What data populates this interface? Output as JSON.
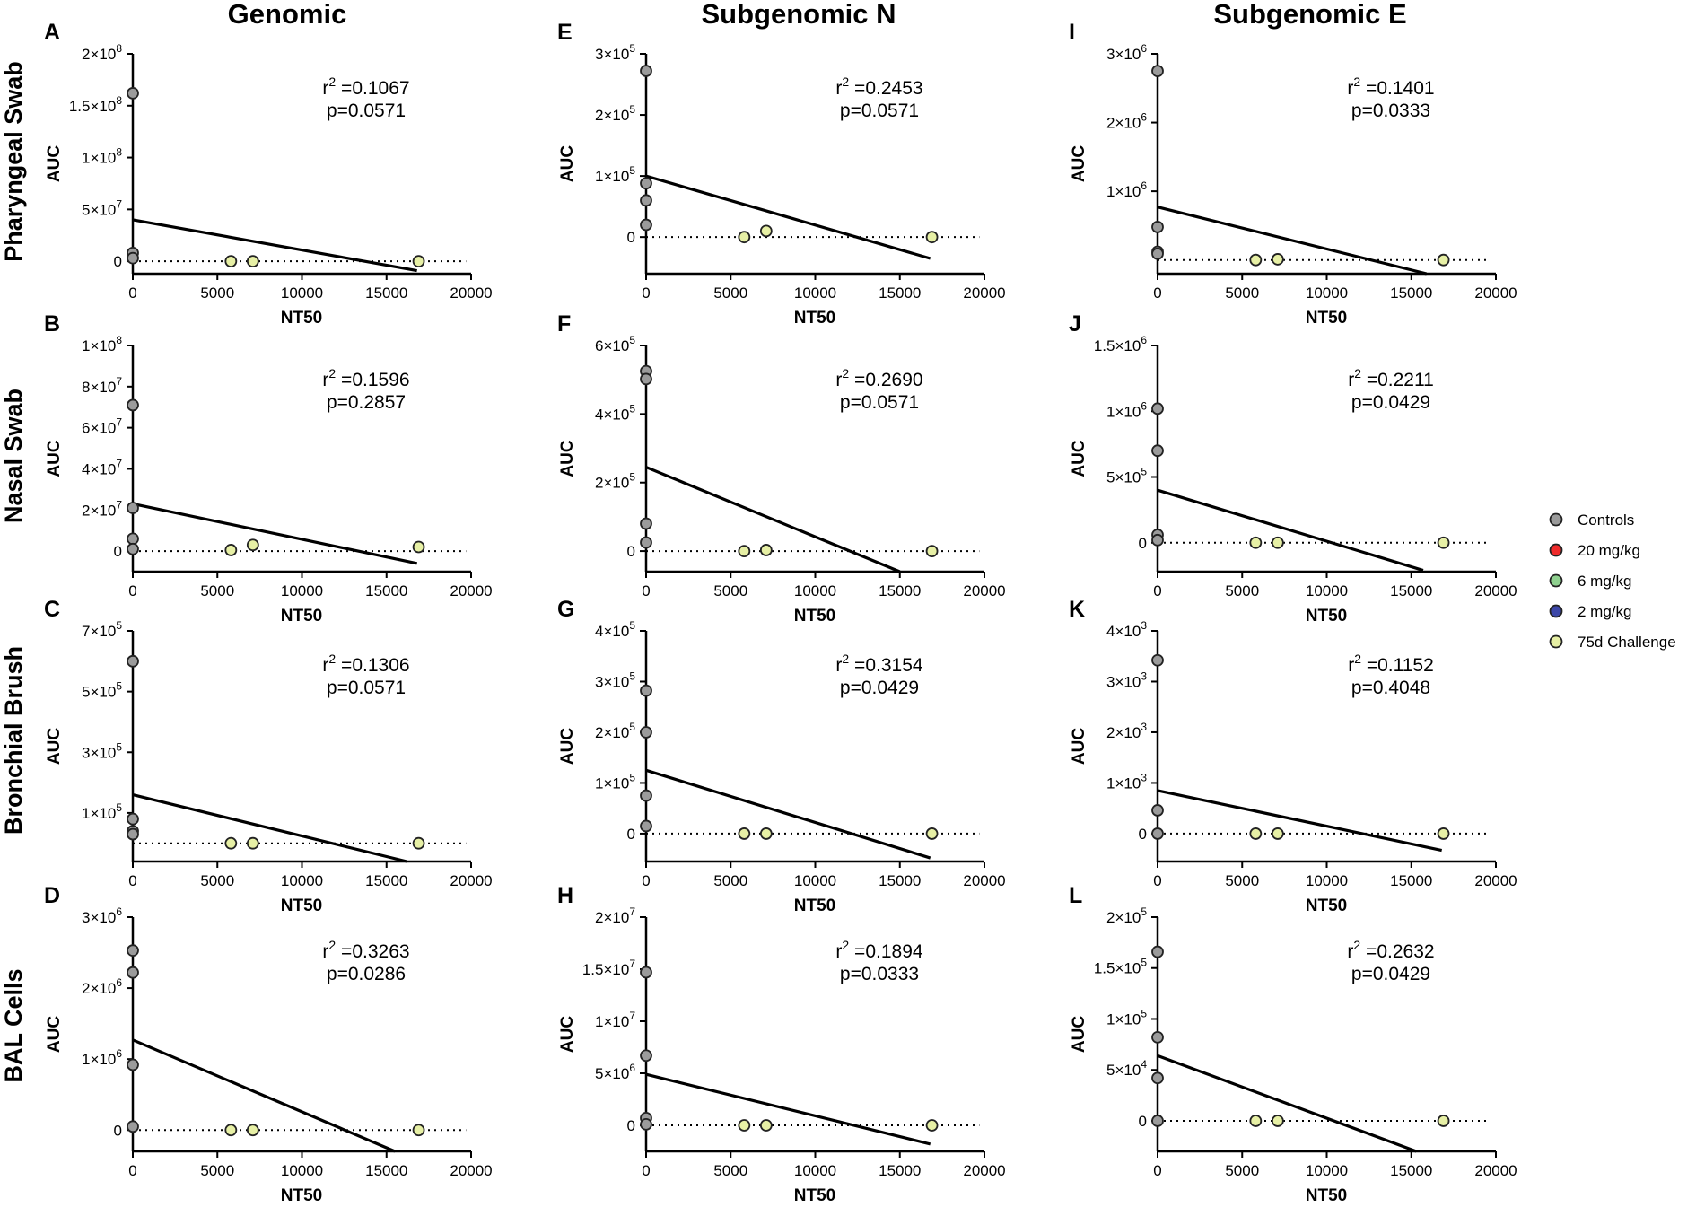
{
  "column_titles": [
    "Genomic",
    "Subgenomic N",
    "Subgenomic E"
  ],
  "row_titles": [
    "Pharyngeal Swab",
    "Nasal Swab",
    "Bronchial  Brush",
    "BAL Cells"
  ],
  "legend": [
    {
      "label": "Controls",
      "color": "#9b9b9b"
    },
    {
      "label": "20 mg/kg",
      "color": "#ef2b2b"
    },
    {
      "label": "6 mg/kg",
      "color": "#8fd18f"
    },
    {
      "label": "2 mg/kg",
      "color": "#3c47a8"
    },
    {
      "label": "75d Challenge",
      "color": "#e7f0a5"
    }
  ],
  "chart_data": [
    {
      "panel": "A",
      "type": "scatter",
      "title": "Genomic / Pharyngeal Swab",
      "xlabel": "NT50",
      "ylabel": "AUC",
      "xlim": [
        0,
        20000
      ],
      "ylim": [
        -12000000,
        200000000
      ],
      "y_ticks": [
        {
          "v": 0,
          "label": "0"
        },
        {
          "v": 50000000,
          "base": "5×10",
          "exp": "7"
        },
        {
          "v": 100000000,
          "base": "1×10",
          "exp": "8"
        },
        {
          "v": 150000000,
          "base": "1.5×10",
          "exp": "8"
        },
        {
          "v": 200000000,
          "base": "2×10",
          "exp": "8"
        }
      ],
      "x_ticks": [
        0,
        5000,
        10000,
        15000,
        20000
      ],
      "controls": [
        [
          0,
          162000000
        ],
        [
          0,
          8000000
        ],
        [
          0,
          3000000
        ]
      ],
      "challenge": [
        [
          5800,
          0
        ],
        [
          7100,
          0
        ],
        [
          16900,
          0
        ]
      ],
      "fit": [
        [
          0,
          40000000
        ],
        [
          16800,
          -9000000
        ]
      ],
      "r2": "r =0.1067",
      "p": "p=0.0571"
    },
    {
      "panel": "B",
      "type": "scatter",
      "title": "Genomic / Nasal Swab",
      "xlabel": "NT50",
      "ylabel": "AUC",
      "xlim": [
        0,
        20000
      ],
      "ylim": [
        -10000000,
        100000000
      ],
      "y_ticks": [
        {
          "v": 0,
          "label": "0"
        },
        {
          "v": 20000000,
          "base": "2×10",
          "exp": "7"
        },
        {
          "v": 40000000,
          "base": "4×10",
          "exp": "7"
        },
        {
          "v": 60000000,
          "base": "6×10",
          "exp": "7"
        },
        {
          "v": 80000000,
          "base": "8×10",
          "exp": "7"
        },
        {
          "v": 100000000,
          "base": "1×10",
          "exp": "8"
        }
      ],
      "x_ticks": [
        0,
        5000,
        10000,
        15000,
        20000
      ],
      "controls": [
        [
          0,
          71000000
        ],
        [
          0,
          21000000
        ],
        [
          0,
          6000000
        ],
        [
          0,
          1000000
        ]
      ],
      "challenge": [
        [
          5800,
          500000
        ],
        [
          7100,
          3000000
        ],
        [
          16900,
          2000000
        ]
      ],
      "fit": [
        [
          0,
          23000000
        ],
        [
          16800,
          -6000000
        ]
      ],
      "r2": "r =0.1596",
      "p": "p=0.2857"
    },
    {
      "panel": "C",
      "type": "scatter",
      "title": "Genomic / Bronchial Brush",
      "xlabel": "NT50",
      "ylabel": "AUC",
      "xlim": [
        0,
        20000
      ],
      "ylim": [
        -60000,
        700000
      ],
      "y_ticks": [
        {
          "v": 100000,
          "base": "1×10",
          "exp": "5"
        },
        {
          "v": 300000,
          "base": "3×10",
          "exp": "5"
        },
        {
          "v": 500000,
          "base": "5×10",
          "exp": "5"
        },
        {
          "v": 700000,
          "base": "7×10",
          "exp": "5"
        }
      ],
      "x_ticks": [
        0,
        5000,
        10000,
        15000,
        20000
      ],
      "controls": [
        [
          0,
          600000
        ],
        [
          0,
          80000
        ],
        [
          0,
          40000
        ],
        [
          0,
          30000
        ]
      ],
      "challenge": [
        [
          5800,
          0
        ],
        [
          7100,
          0
        ],
        [
          16900,
          0
        ]
      ],
      "fit": [
        [
          0,
          160000
        ],
        [
          16200,
          -60000
        ]
      ],
      "r2": "r =0.1306",
      "p": "p=0.0571"
    },
    {
      "panel": "D",
      "type": "scatter",
      "title": "Genomic / BAL Cells",
      "xlabel": "NT50",
      "ylabel": "AUC",
      "xlim": [
        0,
        20000
      ],
      "ylim": [
        -300000,
        3000000
      ],
      "y_ticks": [
        {
          "v": 0,
          "label": "0"
        },
        {
          "v": 1000000,
          "base": "1×10",
          "exp": "6"
        },
        {
          "v": 2000000,
          "base": "2×10",
          "exp": "6"
        },
        {
          "v": 3000000,
          "base": "3×10",
          "exp": "6"
        }
      ],
      "x_ticks": [
        0,
        5000,
        10000,
        15000,
        20000
      ],
      "controls": [
        [
          0,
          2530000
        ],
        [
          0,
          2220000
        ],
        [
          0,
          920000
        ],
        [
          0,
          50000
        ]
      ],
      "challenge": [
        [
          5800,
          0
        ],
        [
          7100,
          0
        ],
        [
          16900,
          0
        ]
      ],
      "fit": [
        [
          0,
          1270000
        ],
        [
          15500,
          -300000
        ]
      ],
      "r2": "r =0.3263",
      "p": "p=0.0286"
    },
    {
      "panel": "E",
      "type": "scatter",
      "title": "Subgenomic N / Pharyngeal Swab",
      "xlabel": "NT50",
      "ylabel": "AUC",
      "xlim": [
        0,
        20000
      ],
      "ylim": [
        -60000,
        300000
      ],
      "y_ticks": [
        {
          "v": 0,
          "label": "0"
        },
        {
          "v": 100000,
          "base": "1×10",
          "exp": "5"
        },
        {
          "v": 200000,
          "base": "2×10",
          "exp": "5"
        },
        {
          "v": 300000,
          "base": "3×10",
          "exp": "5"
        }
      ],
      "x_ticks": [
        0,
        5000,
        10000,
        15000,
        20000
      ],
      "controls": [
        [
          0,
          272000
        ],
        [
          0,
          88000
        ],
        [
          0,
          60000
        ],
        [
          0,
          20000
        ]
      ],
      "challenge": [
        [
          5800,
          0
        ],
        [
          7100,
          10000
        ],
        [
          16900,
          0
        ]
      ],
      "fit": [
        [
          0,
          100000
        ],
        [
          16800,
          -35000
        ]
      ],
      "r2": "r =0.2453",
      "p": "p=0.0571"
    },
    {
      "panel": "F",
      "type": "scatter",
      "title": "Subgenomic N / Nasal Swab",
      "xlabel": "NT50",
      "ylabel": "AUC",
      "xlim": [
        0,
        20000
      ],
      "ylim": [
        -60000,
        600000
      ],
      "y_ticks": [
        {
          "v": 0,
          "label": "0"
        },
        {
          "v": 200000,
          "base": "2×10",
          "exp": "5"
        },
        {
          "v": 400000,
          "base": "4×10",
          "exp": "5"
        },
        {
          "v": 600000,
          "base": "6×10",
          "exp": "5"
        }
      ],
      "x_ticks": [
        0,
        5000,
        10000,
        15000,
        20000
      ],
      "controls": [
        [
          0,
          525000
        ],
        [
          0,
          502000
        ],
        [
          0,
          80000
        ],
        [
          0,
          25000
        ]
      ],
      "challenge": [
        [
          5800,
          0
        ],
        [
          7100,
          3000
        ],
        [
          16900,
          0
        ]
      ],
      "fit": [
        [
          0,
          245000
        ],
        [
          15000,
          -60000
        ]
      ],
      "r2": "r =0.2690",
      "p": "p=0.0571"
    },
    {
      "panel": "G",
      "type": "scatter",
      "title": "Subgenomic N / Bronchial Brush",
      "xlabel": "NT50",
      "ylabel": "AUC",
      "xlim": [
        0,
        20000
      ],
      "ylim": [
        -55000,
        400000
      ],
      "y_ticks": [
        {
          "v": 0,
          "label": "0"
        },
        {
          "v": 100000,
          "base": "1×10",
          "exp": "5"
        },
        {
          "v": 200000,
          "base": "2×10",
          "exp": "5"
        },
        {
          "v": 300000,
          "base": "3×10",
          "exp": "5"
        },
        {
          "v": 400000,
          "base": "4×10",
          "exp": "5"
        }
      ],
      "x_ticks": [
        0,
        5000,
        10000,
        15000,
        20000
      ],
      "controls": [
        [
          0,
          282000
        ],
        [
          0,
          200000
        ],
        [
          0,
          75000
        ],
        [
          0,
          15000
        ]
      ],
      "challenge": [
        [
          5800,
          0
        ],
        [
          7100,
          0
        ],
        [
          16900,
          0
        ]
      ],
      "fit": [
        [
          0,
          125000
        ],
        [
          16800,
          -48000
        ]
      ],
      "r2": "r =0.3154",
      "p": "p=0.0429"
    },
    {
      "panel": "H",
      "type": "scatter",
      "title": "Subgenomic N / BAL Cells",
      "xlabel": "NT50",
      "ylabel": "AUC",
      "xlim": [
        0,
        20000
      ],
      "ylim": [
        -2500000,
        20000000
      ],
      "y_ticks": [
        {
          "v": 0,
          "label": "0"
        },
        {
          "v": 5000000,
          "base": "5×10",
          "exp": "6"
        },
        {
          "v": 10000000,
          "base": "1×10",
          "exp": "7"
        },
        {
          "v": 15000000,
          "base": "1.5×10",
          "exp": "7"
        },
        {
          "v": 20000000,
          "base": "2×10",
          "exp": "7"
        }
      ],
      "x_ticks": [
        0,
        5000,
        10000,
        15000,
        20000
      ],
      "controls": [
        [
          0,
          14700000
        ],
        [
          0,
          6700000
        ],
        [
          0,
          700000
        ],
        [
          0,
          100000
        ]
      ],
      "challenge": [
        [
          5800,
          0
        ],
        [
          7100,
          0
        ],
        [
          16900,
          0
        ]
      ],
      "fit": [
        [
          0,
          4900000
        ],
        [
          16800,
          -1800000
        ]
      ],
      "r2": "r =0.1894",
      "p": "p=0.0333"
    },
    {
      "panel": "I",
      "type": "scatter",
      "title": "Subgenomic E / Pharyngeal Swab",
      "xlabel": "NT50",
      "ylabel": "AUC",
      "xlim": [
        0,
        20000
      ],
      "ylim": [
        -200000,
        3000000
      ],
      "y_ticks": [
        {
          "v": 1000000,
          "base": "1×10",
          "exp": "6"
        },
        {
          "v": 2000000,
          "base": "2×10",
          "exp": "6"
        },
        {
          "v": 3000000,
          "base": "3×10",
          "exp": "6"
        }
      ],
      "x_ticks": [
        0,
        5000,
        10000,
        15000,
        20000
      ],
      "controls": [
        [
          0,
          2750000
        ],
        [
          0,
          480000
        ],
        [
          0,
          120000
        ],
        [
          0,
          90000
        ]
      ],
      "challenge": [
        [
          5800,
          0
        ],
        [
          7100,
          10000
        ],
        [
          16900,
          0
        ]
      ],
      "fit": [
        [
          0,
          770000
        ],
        [
          15900,
          -200000
        ]
      ],
      "r2": "r =0.1401",
      "p": "p=0.0333"
    },
    {
      "panel": "J",
      "type": "scatter",
      "title": "Subgenomic E / Nasal Swab",
      "xlabel": "NT50",
      "ylabel": "AUC",
      "xlim": [
        0,
        20000
      ],
      "ylim": [
        -220000,
        1500000
      ],
      "y_ticks": [
        {
          "v": 0,
          "label": "0"
        },
        {
          "v": 500000,
          "base": "5×10",
          "exp": "5"
        },
        {
          "v": 1000000,
          "base": "1×10",
          "exp": "6"
        },
        {
          "v": 1500000,
          "base": "1.5×10",
          "exp": "6"
        }
      ],
      "x_ticks": [
        0,
        5000,
        10000,
        15000,
        20000
      ],
      "controls": [
        [
          0,
          1020000
        ],
        [
          0,
          700000
        ],
        [
          0,
          60000
        ],
        [
          0,
          20000
        ]
      ],
      "challenge": [
        [
          5800,
          0
        ],
        [
          7100,
          0
        ],
        [
          16900,
          0
        ]
      ],
      "fit": [
        [
          0,
          400000
        ],
        [
          15700,
          -210000
        ]
      ],
      "r2": "r =0.2211",
      "p": "p=0.0429"
    },
    {
      "panel": "K",
      "type": "scatter",
      "title": "Subgenomic E / Bronchial Brush",
      "xlabel": "NT50",
      "ylabel": "AUC",
      "xlim": [
        0,
        20000
      ],
      "ylim": [
        -550,
        4000
      ],
      "y_ticks": [
        {
          "v": 0,
          "label": "0"
        },
        {
          "v": 1000,
          "base": "1×10",
          "exp": "3"
        },
        {
          "v": 2000,
          "base": "2×10",
          "exp": "3"
        },
        {
          "v": 3000,
          "base": "3×10",
          "exp": "3"
        },
        {
          "v": 4000,
          "base": "4×10",
          "exp": "3"
        }
      ],
      "x_ticks": [
        0,
        5000,
        10000,
        15000,
        20000
      ],
      "controls": [
        [
          0,
          3420
        ],
        [
          0,
          460
        ],
        [
          0,
          0
        ]
      ],
      "challenge": [
        [
          5800,
          0
        ],
        [
          7100,
          0
        ],
        [
          16900,
          0
        ]
      ],
      "fit": [
        [
          0,
          850
        ],
        [
          16800,
          -330
        ]
      ],
      "r2": "r =0.1152",
      "p": "p=0.4048"
    },
    {
      "panel": "L",
      "type": "scatter",
      "title": "Subgenomic E / BAL Cells",
      "xlabel": "NT50",
      "ylabel": "AUC",
      "xlim": [
        0,
        20000
      ],
      "ylim": [
        -30000,
        200000
      ],
      "y_ticks": [
        {
          "v": 0,
          "label": "0"
        },
        {
          "v": 50000,
          "base": "5×10",
          "exp": "4"
        },
        {
          "v": 100000,
          "base": "1×10",
          "exp": "5"
        },
        {
          "v": 150000,
          "base": "1.5×10",
          "exp": "5"
        },
        {
          "v": 200000,
          "base": "2×10",
          "exp": "5"
        }
      ],
      "x_ticks": [
        0,
        5000,
        10000,
        15000,
        20000
      ],
      "controls": [
        [
          0,
          166000
        ],
        [
          0,
          82000
        ],
        [
          0,
          42000
        ],
        [
          0,
          0
        ]
      ],
      "challenge": [
        [
          5800,
          0
        ],
        [
          7100,
          0
        ],
        [
          16900,
          0
        ]
      ],
      "fit": [
        [
          0,
          64000
        ],
        [
          15300,
          -30000
        ]
      ],
      "r2": "r =0.2632",
      "p": "p=0.0429"
    }
  ]
}
